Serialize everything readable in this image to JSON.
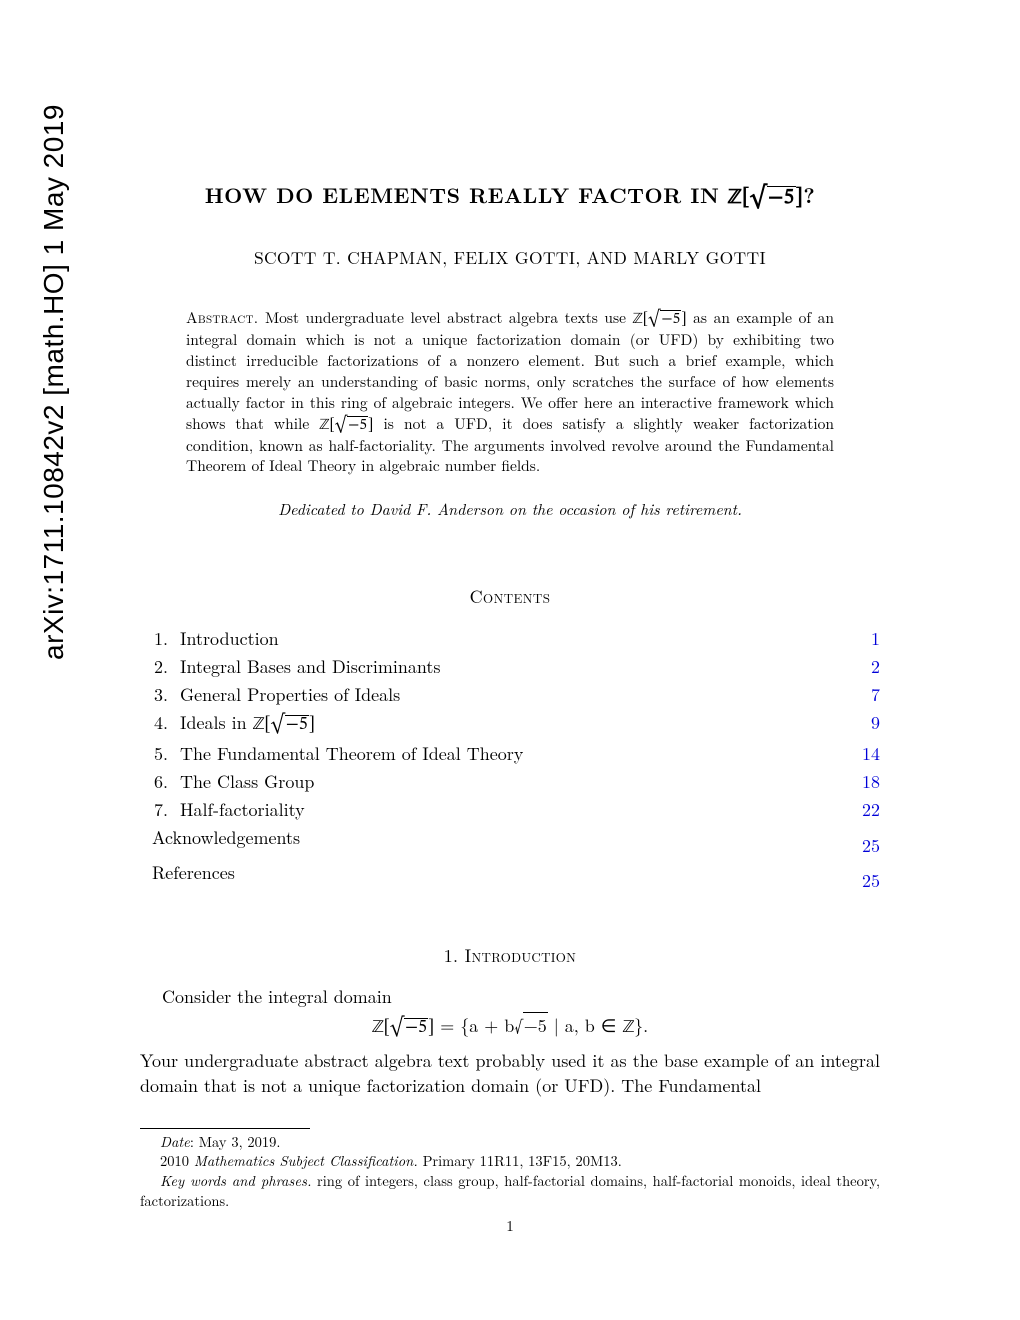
{
  "arxiv_stamp": "arXiv:1711.10842v2  [math.HO]  1 May 2019",
  "title_prefix": "HOW DO ELEMENTS REALLY FACTOR IN ",
  "title_suffix": "?",
  "authors": "SCOTT T. CHAPMAN, FELIX GOTTI, AND MARLY GOTTI",
  "abstract_label": "Abstract.",
  "abstract_part1": " Most undergraduate level abstract algebra texts use ",
  "abstract_part2": " as an example of an integral domain which is not a unique factorization domain (or UFD) by exhibiting two distinct irreducible factorizations of a nonzero element. But such a brief example, which requires merely an understanding of basic norms, only scratches the surface of how elements actually factor in this ring of algebraic integers. We offer here an interactive framework which shows that while ",
  "abstract_part3": " is not a UFD, it does satisfy a slightly weaker factorization condition, known as half-factoriality. The arguments involved revolve around the Fundamental Theorem of Ideal Theory in algebraic number fields.",
  "dedication": "Dedicated to David F. Anderson on the occasion of his retirement.",
  "contents_heading": "Contents",
  "toc": [
    {
      "num": "1.",
      "label": "Introduction",
      "page": "1"
    },
    {
      "num": "2.",
      "label": "Integral Bases and Discriminants",
      "page": "2"
    },
    {
      "num": "3.",
      "label": "General Properties of Ideals",
      "page": "7"
    },
    {
      "num": "4.",
      "label": "Ideals in ℤ[√−5]",
      "label_prefix": "Ideals in ",
      "has_ring": true,
      "page": "9"
    },
    {
      "num": "5.",
      "label": "The Fundamental Theorem of Ideal Theory",
      "page": "14"
    },
    {
      "num": "6.",
      "label": "The Class Group",
      "page": "18"
    },
    {
      "num": "7.",
      "label": "Half-factoriality",
      "page": "22"
    },
    {
      "num": "",
      "label": "Acknowledgements",
      "page": "25"
    },
    {
      "num": "",
      "label": "References",
      "page": "25"
    }
  ],
  "section1_num": "1.",
  "section1_title": "Introduction",
  "intro_line1": "Consider the integral domain",
  "display_eq_prefix": " = {a + b",
  "display_eq_suffix": " | a, b ∈ ",
  "display_eq_end": "}.",
  "intro_para2": "Your undergraduate abstract algebra text probably used it as the base example of an integral domain that is not a unique factorization domain (or UFD). The Fundamental",
  "footnotes": {
    "date_label": "Date",
    "date_text": ": May 3, 2019.",
    "msc_year": "2010 ",
    "msc_label": "Mathematics Subject Classification.",
    "msc_text": " Primary 11R11, 13F15, 20M13.",
    "kw_label": "Key words and phrases.",
    "kw_text": " ring of integers, class group, half-factorial domains, half-factorial monoids, ideal theory, factorizations."
  },
  "page_number": "1",
  "colors": {
    "link": "#0000d8",
    "text": "#000000",
    "background": "#ffffff"
  }
}
